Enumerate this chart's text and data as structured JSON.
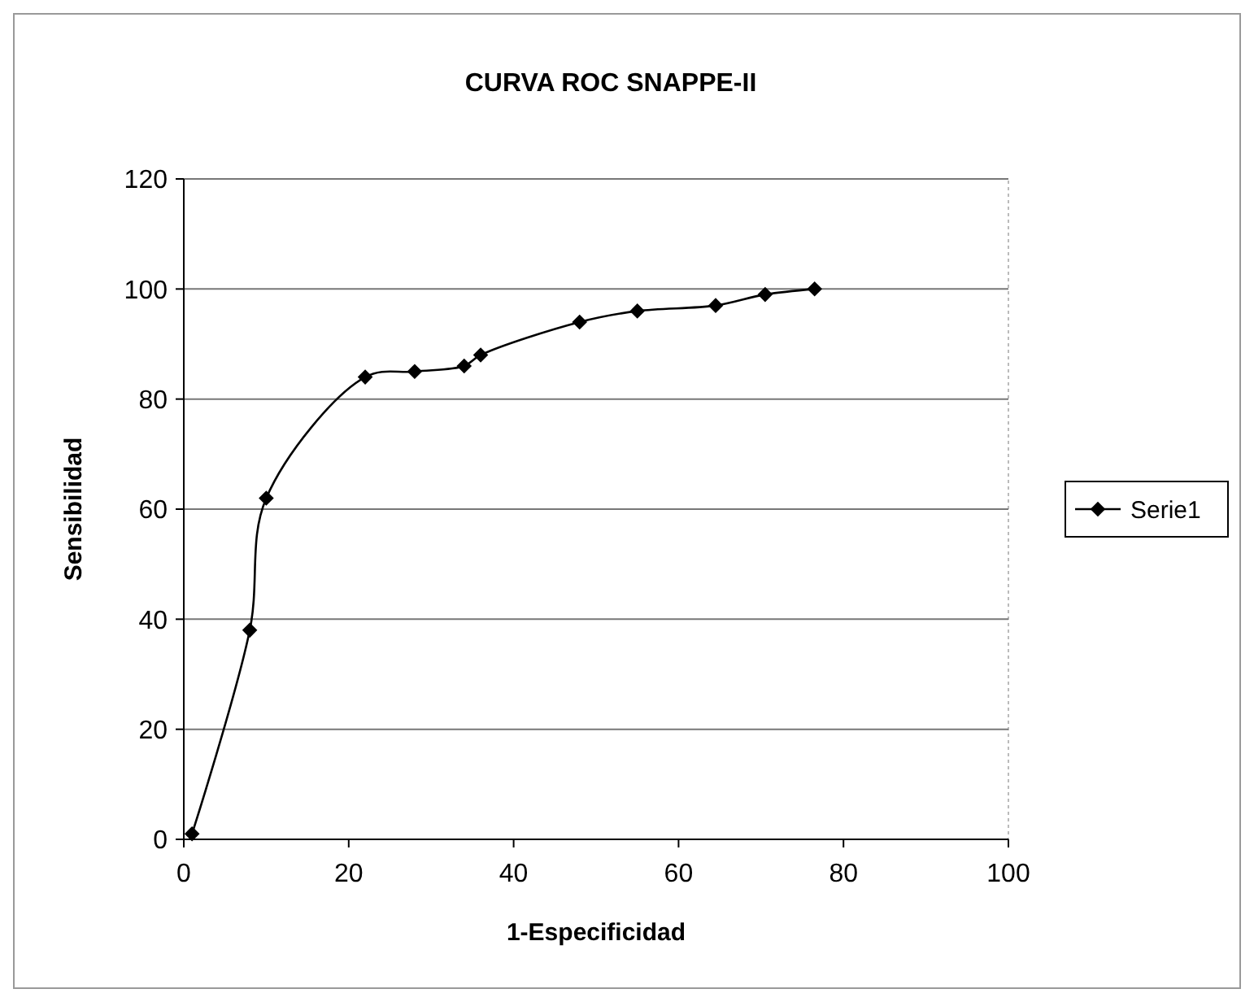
{
  "chart_data": {
    "type": "line",
    "title": "CURVA ROC SNAPPE-II",
    "xlabel": "1-Especificidad",
    "ylabel": "Sensibilidad",
    "x": [
      1,
      8,
      10,
      22,
      28,
      34,
      36,
      48,
      55,
      64.5,
      70.5,
      76.5
    ],
    "series": [
      {
        "name": "Serie1",
        "color": "#000000",
        "values": [
          1,
          38,
          62,
          84,
          85,
          86,
          88,
          94,
          96,
          97,
          99,
          100
        ]
      }
    ],
    "xlim": [
      0,
      100
    ],
    "xticks": [
      0,
      20,
      40,
      60,
      80,
      100
    ],
    "ylim": [
      0,
      120
    ],
    "yticks": [
      0,
      20,
      40,
      60,
      80,
      100,
      120
    ],
    "grid": "y",
    "legend": "right",
    "marker": "diamond",
    "line_style": "solid"
  }
}
